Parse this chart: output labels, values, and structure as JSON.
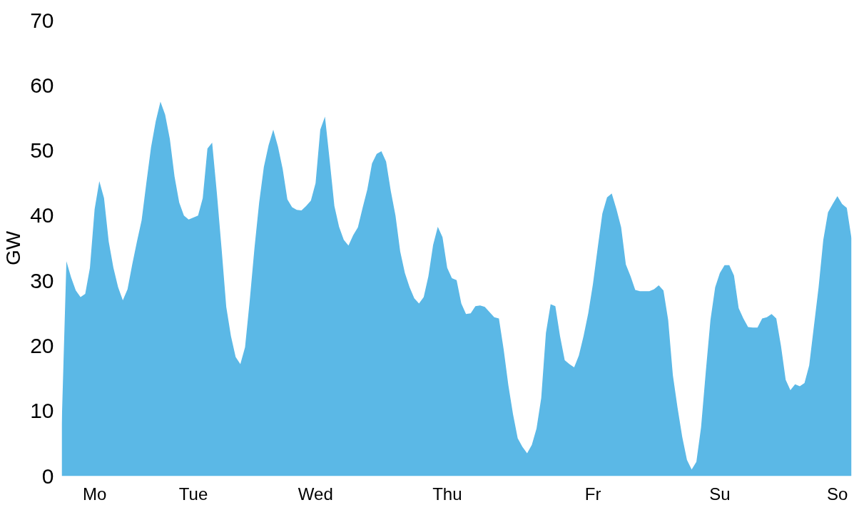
{
  "chart_data": {
    "type": "area",
    "ylabel": "GW",
    "color": "#5bb8e6",
    "categories": [
      null,
      null,
      null,
      null,
      null,
      null,
      null,
      "Mo",
      null,
      null,
      null,
      null,
      null,
      null,
      null,
      null,
      null,
      null,
      null,
      null,
      null,
      null,
      null,
      null,
      null,
      null,
      null,
      null,
      "Tue",
      null,
      null,
      null,
      null,
      null,
      null,
      null,
      null,
      null,
      null,
      null,
      null,
      null,
      null,
      null,
      null,
      null,
      null,
      null,
      null,
      null,
      null,
      null,
      null,
      null,
      "Wed",
      null,
      null,
      null,
      null,
      null,
      null,
      null,
      null,
      null,
      null,
      null,
      null,
      null,
      null,
      null,
      null,
      null,
      null,
      null,
      null,
      null,
      null,
      null,
      null,
      null,
      null,
      null,
      "Thu",
      null,
      null,
      null,
      null,
      null,
      null,
      null,
      null,
      null,
      null,
      null,
      null,
      null,
      null,
      null,
      null,
      null,
      null,
      null,
      null,
      null,
      null,
      null,
      null,
      null,
      null,
      null,
      null,
      null,
      null,
      "Fr",
      null,
      null,
      null,
      null,
      null,
      null,
      null,
      null,
      null,
      null,
      null,
      null,
      null,
      null,
      null,
      null,
      null,
      null,
      null,
      null,
      null,
      null,
      null,
      null,
      null,
      null,
      "Su",
      null,
      null,
      null,
      null,
      null,
      null,
      null,
      null,
      null,
      null,
      null,
      null,
      null,
      null,
      null,
      null,
      null,
      null,
      null,
      null,
      null,
      null,
      null,
      null,
      "So",
      null,
      null,
      null
    ],
    "values": [
      8,
      33,
      30.5,
      28.5,
      27.5,
      28,
      32,
      41,
      45.3,
      42.7,
      36,
      32,
      29,
      27,
      28.7,
      32.5,
      36,
      39.3,
      45,
      50.5,
      54.5,
      57.5,
      55.5,
      51.8,
      46,
      42,
      40,
      39.4,
      39.7,
      40,
      42.7,
      50.3,
      51.2,
      43.5,
      35,
      26,
      21.5,
      18.3,
      17.2,
      19.8,
      27,
      35,
      42,
      47.5,
      50.8,
      53.2,
      50.6,
      47.2,
      42.5,
      41.3,
      40.9,
      40.8,
      41.5,
      42.3,
      45,
      53.2,
      55.2,
      48.5,
      41.5,
      38.3,
      36.3,
      35.4,
      37,
      38.2,
      41.2,
      44,
      48,
      49.5,
      49.9,
      48.3,
      43.8,
      40,
      34.5,
      31.2,
      29,
      27.3,
      26.5,
      27.5,
      30.7,
      35.5,
      38.3,
      36.7,
      32,
      30.4,
      30.1,
      26.5,
      24.9,
      25,
      26.1,
      26.2,
      26,
      25.2,
      24.4,
      24.2,
      19.5,
      14,
      9.5,
      5.8,
      4.5,
      3.5,
      4.8,
      7.3,
      12,
      22,
      26.4,
      26.1,
      21.5,
      17.8,
      17.2,
      16.7,
      18.5,
      21.5,
      25,
      29.5,
      35,
      40.3,
      42.8,
      43.4,
      41,
      38.2,
      32.5,
      30.7,
      28.6,
      28.4,
      28.4,
      28.4,
      28.7,
      29.3,
      28.5,
      24,
      15.5,
      10.5,
      6,
      2.5,
      1,
      2.2,
      7.5,
      16,
      24,
      29,
      31.2,
      32.4,
      32.4,
      30.8,
      25.8,
      24.2,
      22.9,
      22.8,
      22.8,
      24.2,
      24.4,
      24.9,
      24.2,
      20,
      14.8,
      13.2,
      14.1,
      13.8,
      14.3,
      17,
      23,
      29,
      36.3,
      40.5,
      41.8,
      43,
      41.8,
      41.2,
      36.5
    ],
    "ylim": [
      0,
      70
    ],
    "yticks": [
      0,
      10,
      20,
      30,
      40,
      50,
      60,
      70
    ]
  }
}
